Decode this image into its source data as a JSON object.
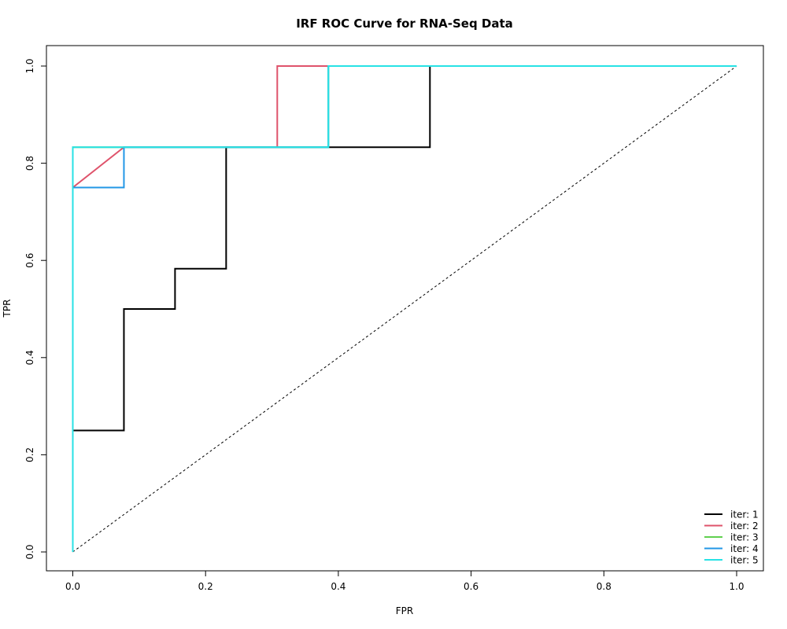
{
  "chart_data": {
    "type": "line",
    "title": "IRF ROC Curve for RNA-Seq Data",
    "xlabel": "FPR",
    "ylabel": "TPR",
    "xlim": [
      0,
      1
    ],
    "ylim": [
      0,
      1
    ],
    "x_ticks": [
      "0.0",
      "0.2",
      "0.4",
      "0.6",
      "0.8",
      "1.0"
    ],
    "y_ticks": [
      "0.0",
      "0.2",
      "0.4",
      "0.6",
      "0.8",
      "1.0"
    ],
    "grid": false,
    "legend_position": "bottom-right",
    "reference_line": {
      "style": "dashed",
      "color": "#000000",
      "x": [
        0,
        1
      ],
      "y": [
        0,
        1
      ]
    },
    "series": [
      {
        "name": "iter: 1",
        "color": "#000000",
        "x": [
          0,
          0,
          0.077,
          0.077,
          0.154,
          0.154,
          0.231,
          0.231,
          0.538,
          0.538,
          1
        ],
        "y": [
          0,
          0.25,
          0.25,
          0.5,
          0.5,
          0.583,
          0.583,
          0.833,
          0.833,
          1,
          1
        ]
      },
      {
        "name": "iter: 2",
        "color": "#DF536B",
        "x": [
          0,
          0,
          0.077,
          0.308,
          0.308,
          1
        ],
        "y": [
          0,
          0.75,
          0.833,
          0.833,
          1,
          1
        ]
      },
      {
        "name": "iter: 3",
        "color": "#61D04F",
        "x": [
          0,
          0,
          0.385,
          0.385,
          1
        ],
        "y": [
          0,
          0.833,
          0.833,
          1,
          1
        ]
      },
      {
        "name": "iter: 4",
        "color": "#2297E6",
        "x": [
          0,
          0,
          0.077,
          0.077,
          0.385,
          0.385,
          1
        ],
        "y": [
          0,
          0.75,
          0.75,
          0.833,
          0.833,
          1,
          1
        ]
      },
      {
        "name": "iter: 5",
        "color": "#28E2E5",
        "x": [
          0,
          0,
          0.385,
          0.385,
          1
        ],
        "y": [
          0,
          0.833,
          0.833,
          1,
          1
        ]
      }
    ]
  }
}
